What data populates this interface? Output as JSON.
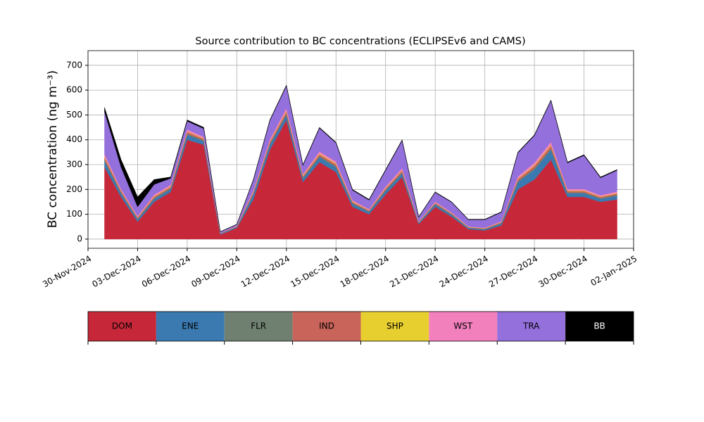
{
  "chart_data": {
    "type": "stacked_area",
    "title": "Source contribution to BC concentrations (ECLIPSEv6 and CAMS)",
    "y_label": "BC concentration (ng m⁻³)",
    "x": [
      "2024-12-01",
      "2024-12-02",
      "2024-12-03",
      "2024-12-04",
      "2024-12-05",
      "2024-12-06",
      "2024-12-07",
      "2024-12-08",
      "2024-12-09",
      "2024-12-10",
      "2024-12-11",
      "2024-12-12",
      "2024-12-13",
      "2024-12-14",
      "2024-12-15",
      "2024-12-16",
      "2024-12-17",
      "2024-12-18",
      "2024-12-19",
      "2024-12-20",
      "2024-12-21",
      "2024-12-22",
      "2024-12-23",
      "2024-12-24",
      "2024-12-25",
      "2024-12-26",
      "2024-12-27",
      "2024-12-28",
      "2024-12-29",
      "2024-12-30",
      "2024-12-31",
      "2025-01-01"
    ],
    "series": [
      {
        "name": "DOM",
        "color": "#c6283a",
        "values": [
          290,
          170,
          70,
          150,
          190,
          400,
          380,
          18,
          45,
          160,
          360,
          480,
          230,
          310,
          270,
          130,
          100,
          180,
          250,
          60,
          130,
          90,
          40,
          35,
          55,
          200,
          240,
          320,
          170,
          170,
          150,
          160
        ]
      },
      {
        "name": "ENE",
        "color": "#3a7ab0",
        "values": [
          25,
          15,
          10,
          12,
          12,
          20,
          15,
          3,
          4,
          20,
          20,
          20,
          15,
          20,
          20,
          12,
          10,
          15,
          15,
          5,
          10,
          8,
          5,
          5,
          8,
          30,
          40,
          40,
          15,
          15,
          12,
          15
        ]
      },
      {
        "name": "FLR",
        "color": "#6f8070",
        "values": [
          5,
          3,
          2,
          3,
          3,
          4,
          3,
          1,
          1,
          3,
          4,
          4,
          3,
          4,
          4,
          3,
          2,
          3,
          3,
          1,
          2,
          2,
          1,
          1,
          2,
          4,
          5,
          5,
          3,
          3,
          3,
          3
        ]
      },
      {
        "name": "IND",
        "color": "#c8645a",
        "values": [
          10,
          6,
          5,
          6,
          6,
          8,
          6,
          1,
          2,
          6,
          8,
          10,
          6,
          8,
          8,
          5,
          4,
          6,
          8,
          2,
          4,
          3,
          2,
          2,
          3,
          8,
          10,
          12,
          6,
          6,
          5,
          6
        ]
      },
      {
        "name": "SHP",
        "color": "#e8cf30",
        "values": [
          3,
          2,
          1,
          2,
          2,
          2,
          2,
          0,
          0,
          2,
          2,
          3,
          2,
          3,
          3,
          2,
          1,
          2,
          2,
          1,
          1,
          1,
          1,
          1,
          1,
          2,
          3,
          3,
          2,
          2,
          2,
          2
        ]
      },
      {
        "name": "WST",
        "color": "#f280bd",
        "values": [
          10,
          6,
          5,
          6,
          6,
          8,
          6,
          1,
          2,
          6,
          8,
          10,
          6,
          8,
          8,
          5,
          4,
          6,
          8,
          2,
          4,
          3,
          2,
          2,
          3,
          8,
          10,
          12,
          6,
          6,
          5,
          6
        ]
      },
      {
        "name": "TRA",
        "color": "#9370db",
        "values": [
          170,
          88,
          37,
          41,
          26,
          33,
          33,
          5,
          5,
          40,
          75,
          90,
          35,
          94,
          74,
          40,
          36,
          65,
          111,
          17,
          37,
          41,
          27,
          32,
          36,
          95,
          109,
          165,
          105,
          135,
          70,
          85
        ]
      },
      {
        "name": "BB",
        "color": "#000000",
        "values": [
          17,
          30,
          40,
          20,
          5,
          5,
          5,
          1,
          1,
          3,
          3,
          3,
          3,
          3,
          3,
          3,
          3,
          3,
          3,
          2,
          2,
          2,
          2,
          2,
          2,
          3,
          3,
          3,
          3,
          3,
          3,
          3
        ]
      }
    ],
    "xlim": [
      "2024-11-30",
      "2025-01-02"
    ],
    "xticks": [
      {
        "value": "2024-11-30",
        "label": "30-Nov-2024"
      },
      {
        "value": "2024-12-03",
        "label": "03-Dec-2024"
      },
      {
        "value": "2024-12-06",
        "label": "06-Dec-2024"
      },
      {
        "value": "2024-12-09",
        "label": "09-Dec-2024"
      },
      {
        "value": "2024-12-12",
        "label": "12-Dec-2024"
      },
      {
        "value": "2024-12-15",
        "label": "15-Dec-2024"
      },
      {
        "value": "2024-12-18",
        "label": "18-Dec-2024"
      },
      {
        "value": "2024-12-21",
        "label": "21-Dec-2024"
      },
      {
        "value": "2024-12-24",
        "label": "24-Dec-2024"
      },
      {
        "value": "2024-12-27",
        "label": "27-Dec-2024"
      },
      {
        "value": "2024-12-30",
        "label": "30-Dec-2024"
      },
      {
        "value": "2025-01-02",
        "label": "02-Jan-2025"
      }
    ],
    "ylim": [
      -37,
      759
    ],
    "yticks": [
      0,
      100,
      200,
      300,
      400,
      500,
      600,
      700
    ],
    "grid": true
  }
}
